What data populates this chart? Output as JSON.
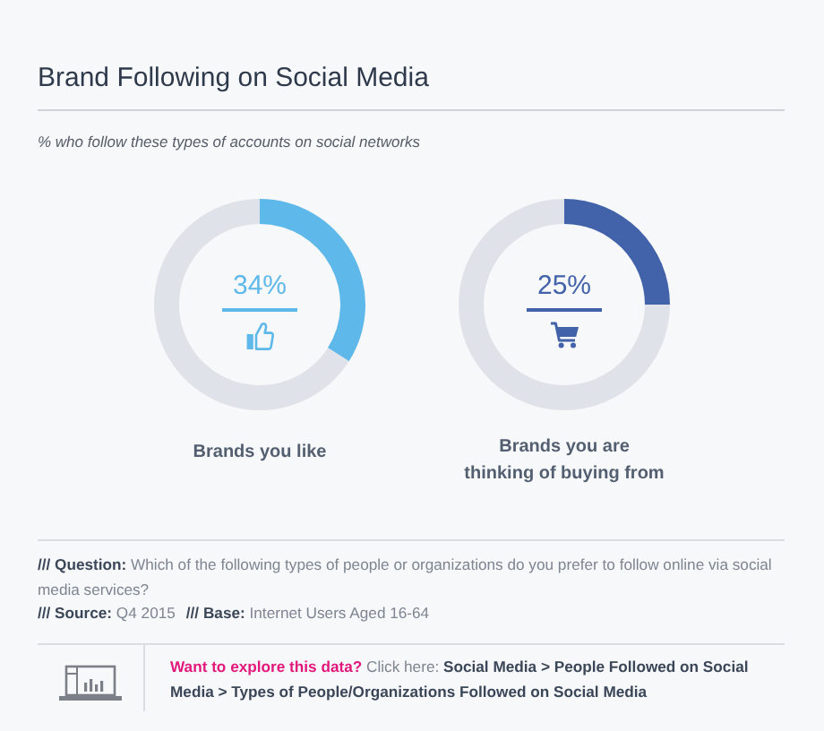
{
  "chart_data": [
    {
      "type": "other",
      "title": "Brand Following on Social Media",
      "subtitle": "% who follow these types of accounts on social networks"
    },
    {
      "type": "donut",
      "title": "Brands you like",
      "categories": [
        null,
        null
      ],
      "values": [
        34,
        66
      ],
      "colors": [
        "#5eb8e9",
        "#e0e2e9"
      ],
      "value_labels": [
        "34%",
        null
      ]
    },
    {
      "type": "donut",
      "title": "Brands you are thinking of buying from",
      "categories": [
        null,
        null
      ],
      "values": [
        25,
        75
      ],
      "colors": [
        "#4262aa",
        "#e0e2e9"
      ],
      "value_labels": [
        "25%",
        null
      ]
    },
    {
      "type": "other",
      "annotations": [
        "/// Question: Which of the following types of people or organizations do you prefer to follow online via social media services?",
        "/// Source: Q4 2015",
        "/// Base: Internet Users Aged 16-64",
        "Want to explore this data? Click here: Social Media > People Followed on Social Media > Types of People/Organizations Followed on Social Media"
      ]
    }
  ]
}
